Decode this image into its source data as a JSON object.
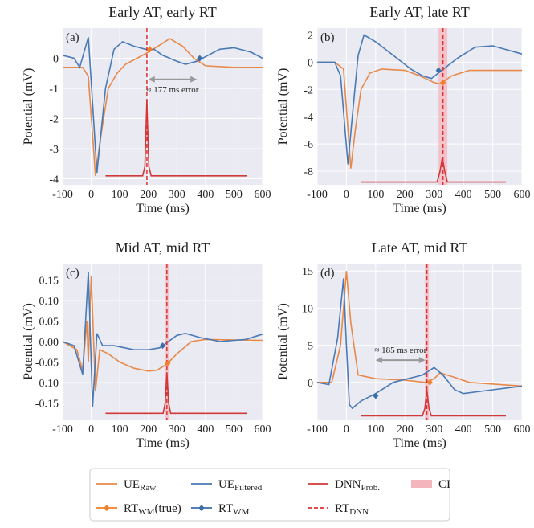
{
  "chart_data": [
    {
      "type": "line",
      "title": "Early AT, early RT",
      "panel": "(a)",
      "x_label": "Time (ms)",
      "y_label": "Potential (mV)",
      "xlim": [
        -100,
        600
      ],
      "xticks": [
        -100,
        0,
        100,
        200,
        300,
        400,
        500,
        600
      ],
      "ylim": [
        -4.2,
        1.0
      ],
      "yticks": [
        -4,
        -3,
        -2,
        -1,
        0
      ],
      "series": [
        {
          "color": "#e8894a",
          "x": [
            -100,
            -30,
            -10,
            15,
            35,
            60,
            90,
            120,
            160,
            200,
            250,
            275,
            320,
            360,
            400,
            500,
            600
          ],
          "values": [
            -0.3,
            -0.3,
            -0.6,
            -3.9,
            -2.5,
            -1.0,
            -0.5,
            -0.2,
            0.0,
            0.2,
            0.5,
            0.65,
            0.4,
            0.0,
            -0.25,
            -0.3,
            -0.3
          ]
        },
        {
          "color": "#4a7ab5",
          "x": [
            -100,
            -60,
            -40,
            -10,
            5,
            20,
            50,
            80,
            110,
            150,
            190,
            220,
            250,
            300,
            330,
            370,
            400,
            450,
            500,
            560,
            600
          ],
          "values": [
            0.1,
            0.0,
            -0.3,
            0.7,
            -1.5,
            -3.8,
            -1.0,
            0.3,
            0.55,
            0.4,
            0.3,
            0.3,
            0.1,
            -0.1,
            -0.2,
            -0.1,
            0.05,
            0.3,
            0.35,
            0.2,
            0.0
          ]
        },
        {
          "color": "#d03a3a",
          "x": [
            50,
            180,
            188,
            195,
            202,
            210,
            545
          ],
          "values": [
            -3.9,
            -3.9,
            -3.6,
            -1.4,
            -3.6,
            -3.9,
            -3.9
          ]
        }
      ],
      "points": [
        {
          "x": 205,
          "y": 0.3,
          "color": "#f07f2a"
        },
        {
          "x": 380,
          "y": 0.0,
          "color": "#3a6ea8"
        }
      ],
      "rt_dnn": 195,
      "annotation": {
        "text": "≈ 177 ms error",
        "x": [
          200,
          370
        ],
        "y": -0.7,
        "text_position": "below"
      }
    },
    {
      "type": "line",
      "title": "Early AT, late RT",
      "panel": "(b)",
      "x_label": "Time (ms)",
      "y_label": "Potential (mV)",
      "xlim": [
        -100,
        600
      ],
      "xticks": [
        -100,
        0,
        100,
        200,
        300,
        400,
        500,
        600
      ],
      "ylim": [
        -9,
        2.5
      ],
      "yticks": [
        -8,
        -6,
        -4,
        -2,
        0,
        2
      ],
      "series": [
        {
          "color": "#e8894a",
          "x": [
            -100,
            -40,
            -10,
            15,
            30,
            50,
            80,
            120,
            200,
            250,
            300,
            320,
            360,
            420,
            600
          ],
          "values": [
            0,
            0,
            -0.5,
            -7.8,
            -5,
            -2,
            -0.8,
            -0.5,
            -0.6,
            -1,
            -1.5,
            -1.6,
            -1,
            -0.6,
            -0.6
          ]
        },
        {
          "color": "#4a7ab5",
          "x": [
            -100,
            -40,
            -20,
            5,
            20,
            40,
            60,
            100,
            160,
            220,
            260,
            290,
            320,
            380,
            440,
            500,
            600
          ],
          "values": [
            0,
            0,
            -1,
            -7.5,
            -4,
            0.5,
            2,
            1.5,
            0.5,
            -0.5,
            -1,
            -1.2,
            -0.7,
            0.3,
            1.1,
            1.2,
            0.6
          ]
        },
        {
          "color": "#d03a3a",
          "x": [
            50,
            310,
            320,
            328,
            336,
            345,
            545
          ],
          "values": [
            -8.8,
            -8.8,
            -8,
            -7,
            -8,
            -8.8,
            -8.8
          ]
        }
      ],
      "points": [
        {
          "x": 330,
          "y": -1.5,
          "color": "#f07f2a"
        },
        {
          "x": 315,
          "y": -0.6,
          "color": "#3a6ea8"
        }
      ],
      "rt_dnn": 330,
      "ci": [
        315,
        345
      ]
    },
    {
      "type": "line",
      "title": "Mid AT, mid RT",
      "panel": "(c)",
      "x_label": "Time (ms)",
      "y_label": "Potential (mV)",
      "xlim": [
        -100,
        600
      ],
      "xticks": [
        -100,
        0,
        100,
        200,
        300,
        400,
        500,
        600
      ],
      "ylim": [
        -0.19,
        0.19
      ],
      "yticks": [
        -0.15,
        {
          "value": -0.1,
          "label": "−0.10"
        },
        -0.05,
        {
          "value": 0,
          "label": "0.00"
        },
        0.05,
        {
          "value": 0.1,
          "label": "0.10"
        },
        0.15
      ],
      "series": [
        {
          "color": "#e8894a",
          "x": [
            -100,
            -50,
            -30,
            -15,
            -10,
            0,
            15,
            30,
            60,
            100,
            150,
            200,
            230,
            265,
            300,
            350,
            400,
            600
          ],
          "values": [
            0,
            -0.02,
            -0.07,
            0.05,
            -0.05,
            0.16,
            -0.12,
            -0.02,
            -0.03,
            -0.05,
            -0.065,
            -0.072,
            -0.07,
            -0.055,
            -0.03,
            0,
            0.005,
            0.003
          ]
        },
        {
          "color": "#4a7ab5",
          "x": [
            -100,
            -60,
            -30,
            -10,
            5,
            20,
            40,
            80,
            150,
            200,
            240,
            260,
            300,
            330,
            380,
            450,
            540,
            600
          ],
          "values": [
            0,
            -0.01,
            -0.08,
            0.17,
            -0.16,
            0.02,
            -0.01,
            -0.01,
            -0.02,
            -0.02,
            -0.015,
            -0.005,
            0.015,
            0.02,
            0.01,
            0,
            0.005,
            0.018
          ]
        },
        {
          "color": "#d03a3a",
          "x": [
            50,
            252,
            259,
            265,
            271,
            278,
            545
          ],
          "values": [
            -0.175,
            -0.175,
            -0.15,
            -0.075,
            -0.15,
            -0.175,
            -0.175
          ]
        }
      ],
      "points": [
        {
          "x": 268,
          "y": -0.053,
          "color": "#f07f2a"
        },
        {
          "x": 250,
          "y": -0.01,
          "color": "#3a6ea8"
        }
      ],
      "rt_dnn": 265,
      "ci": [
        258,
        272
      ]
    },
    {
      "type": "line",
      "title": "Late AT, mid RT",
      "panel": "(d)",
      "x_label": "Time (ms)",
      "y_label": "Potential (mV)",
      "xlim": [
        -100,
        600
      ],
      "xticks": [
        -100,
        0,
        100,
        200,
        300,
        400,
        500,
        600
      ],
      "ylim": [
        -5,
        16
      ],
      "yticks": [
        0,
        5,
        10,
        15
      ],
      "series": [
        {
          "color": "#e8894a",
          "x": [
            -100,
            -50,
            -20,
            0,
            15,
            40,
            100,
            200,
            270,
            300,
            320,
            360,
            420,
            600
          ],
          "values": [
            0,
            0,
            5,
            15,
            8,
            1,
            0.5,
            0.3,
            0,
            0.5,
            1.3,
            0.8,
            0,
            -0.5
          ]
        },
        {
          "color": "#4a7ab5",
          "x": [
            -100,
            -60,
            -30,
            -10,
            0,
            10,
            20,
            50,
            100,
            160,
            210,
            260,
            300,
            330,
            370,
            400,
            500,
            600
          ],
          "values": [
            0,
            -0.3,
            6,
            14,
            5,
            -3,
            -3.5,
            -2.5,
            -1.5,
            0,
            0.5,
            1,
            2,
            1,
            -1,
            -1.5,
            -1,
            -0.5
          ]
        },
        {
          "color": "#d03a3a",
          "x": [
            50,
            260,
            268,
            275,
            282,
            290,
            545
          ],
          "values": [
            -4.5,
            -4.5,
            -3.5,
            -1,
            -3.5,
            -4.5,
            -4.5
          ]
        }
      ],
      "points": [
        {
          "x": 285,
          "y": 0,
          "color": "#f07f2a"
        },
        {
          "x": 100,
          "y": -1.8,
          "color": "#3a6ea8"
        }
      ],
      "rt_dnn": 275,
      "ci": [
        268,
        282
      ],
      "annotation": {
        "text": "≈ 185 ms error",
        "x": [
          100,
          270
        ],
        "y": 3,
        "text_position": "above"
      }
    }
  ],
  "legend": [
    {
      "text": "UE",
      "sub": "Raw",
      "color": "#e8894a",
      "kind": "line"
    },
    {
      "text": "UE",
      "sub": "Filtered",
      "color": "#4a7ab5",
      "kind": "line"
    },
    {
      "text": "DNN",
      "sub": "Prob.",
      "color": "#d03a3a",
      "kind": "line"
    },
    {
      "text": "CI",
      "color": "#f4b6bc",
      "kind": "band"
    },
    {
      "text": "RT",
      "sub": "WM",
      "after": "(true)",
      "color": "#f07f2a",
      "kind": "marker"
    },
    {
      "text": "RT",
      "sub": "WM",
      "color": "#3a6ea8",
      "kind": "marker"
    },
    {
      "text": "RT",
      "sub": "DNN",
      "color": "#e03030",
      "kind": "dashed"
    }
  ]
}
